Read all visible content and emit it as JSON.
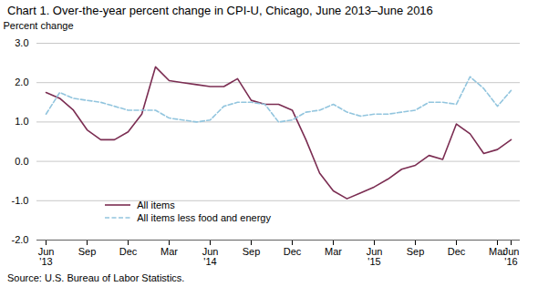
{
  "chart_data": {
    "type": "line",
    "title": "Chart 1. Over-the-year percent change in CPI-U, Chicago, June 2013–June 2016",
    "ylabel": "Percent change",
    "source": "Source: U.S. Bureau of Labor Statistics.",
    "categories": [
      "Jun\n'13",
      null,
      null,
      "Sep",
      null,
      null,
      "Dec",
      null,
      null,
      "Mar",
      null,
      null,
      "Jun\n'14",
      null,
      null,
      "Sep",
      null,
      null,
      "Dec",
      null,
      null,
      "Mar",
      null,
      null,
      "Jun\n'15",
      null,
      null,
      "Sep",
      null,
      null,
      "Dec",
      null,
      null,
      "Mar",
      "Jun\n'16"
    ],
    "series": [
      {
        "name": "All items",
        "color": "#7b2d52",
        "line_style": "solid",
        "values": [
          1.75,
          1.6,
          1.3,
          0.8,
          0.55,
          0.55,
          0.75,
          1.2,
          2.4,
          2.05,
          2.0,
          1.95,
          1.9,
          1.9,
          2.1,
          1.55,
          1.45,
          1.45,
          1.3,
          0.55,
          -0.3,
          -0.75,
          -0.95,
          -0.8,
          -0.65,
          -0.45,
          -0.2,
          -0.1,
          0.15,
          0.05,
          0.95,
          0.7,
          0.2,
          0.3,
          0.55
        ]
      },
      {
        "name": "All items less food and energy",
        "color": "#92c5de",
        "line_style": "dashed",
        "values": [
          1.2,
          1.75,
          1.6,
          1.55,
          1.5,
          1.4,
          1.3,
          1.3,
          1.3,
          1.1,
          1.05,
          1.0,
          1.05,
          1.4,
          1.5,
          1.5,
          1.45,
          1.0,
          1.05,
          1.25,
          1.3,
          1.45,
          1.25,
          1.15,
          1.2,
          1.2,
          1.25,
          1.3,
          1.5,
          1.5,
          1.45,
          2.15,
          1.85,
          1.4,
          1.8
        ]
      }
    ],
    "ylim": [
      -2.0,
      3.0
    ],
    "yticks": [
      {
        "value": -2.0,
        "label": "-2.0"
      },
      {
        "value": -1.0,
        "label": "-1.0"
      },
      {
        "value": 0.0,
        "label": "0.0"
      },
      {
        "value": 1.0,
        "label": "1.0"
      },
      {
        "value": 2.0,
        "label": "2.0"
      },
      {
        "value": 3.0,
        "label": "3.0"
      }
    ],
    "grid": true,
    "legend": "lower left"
  }
}
